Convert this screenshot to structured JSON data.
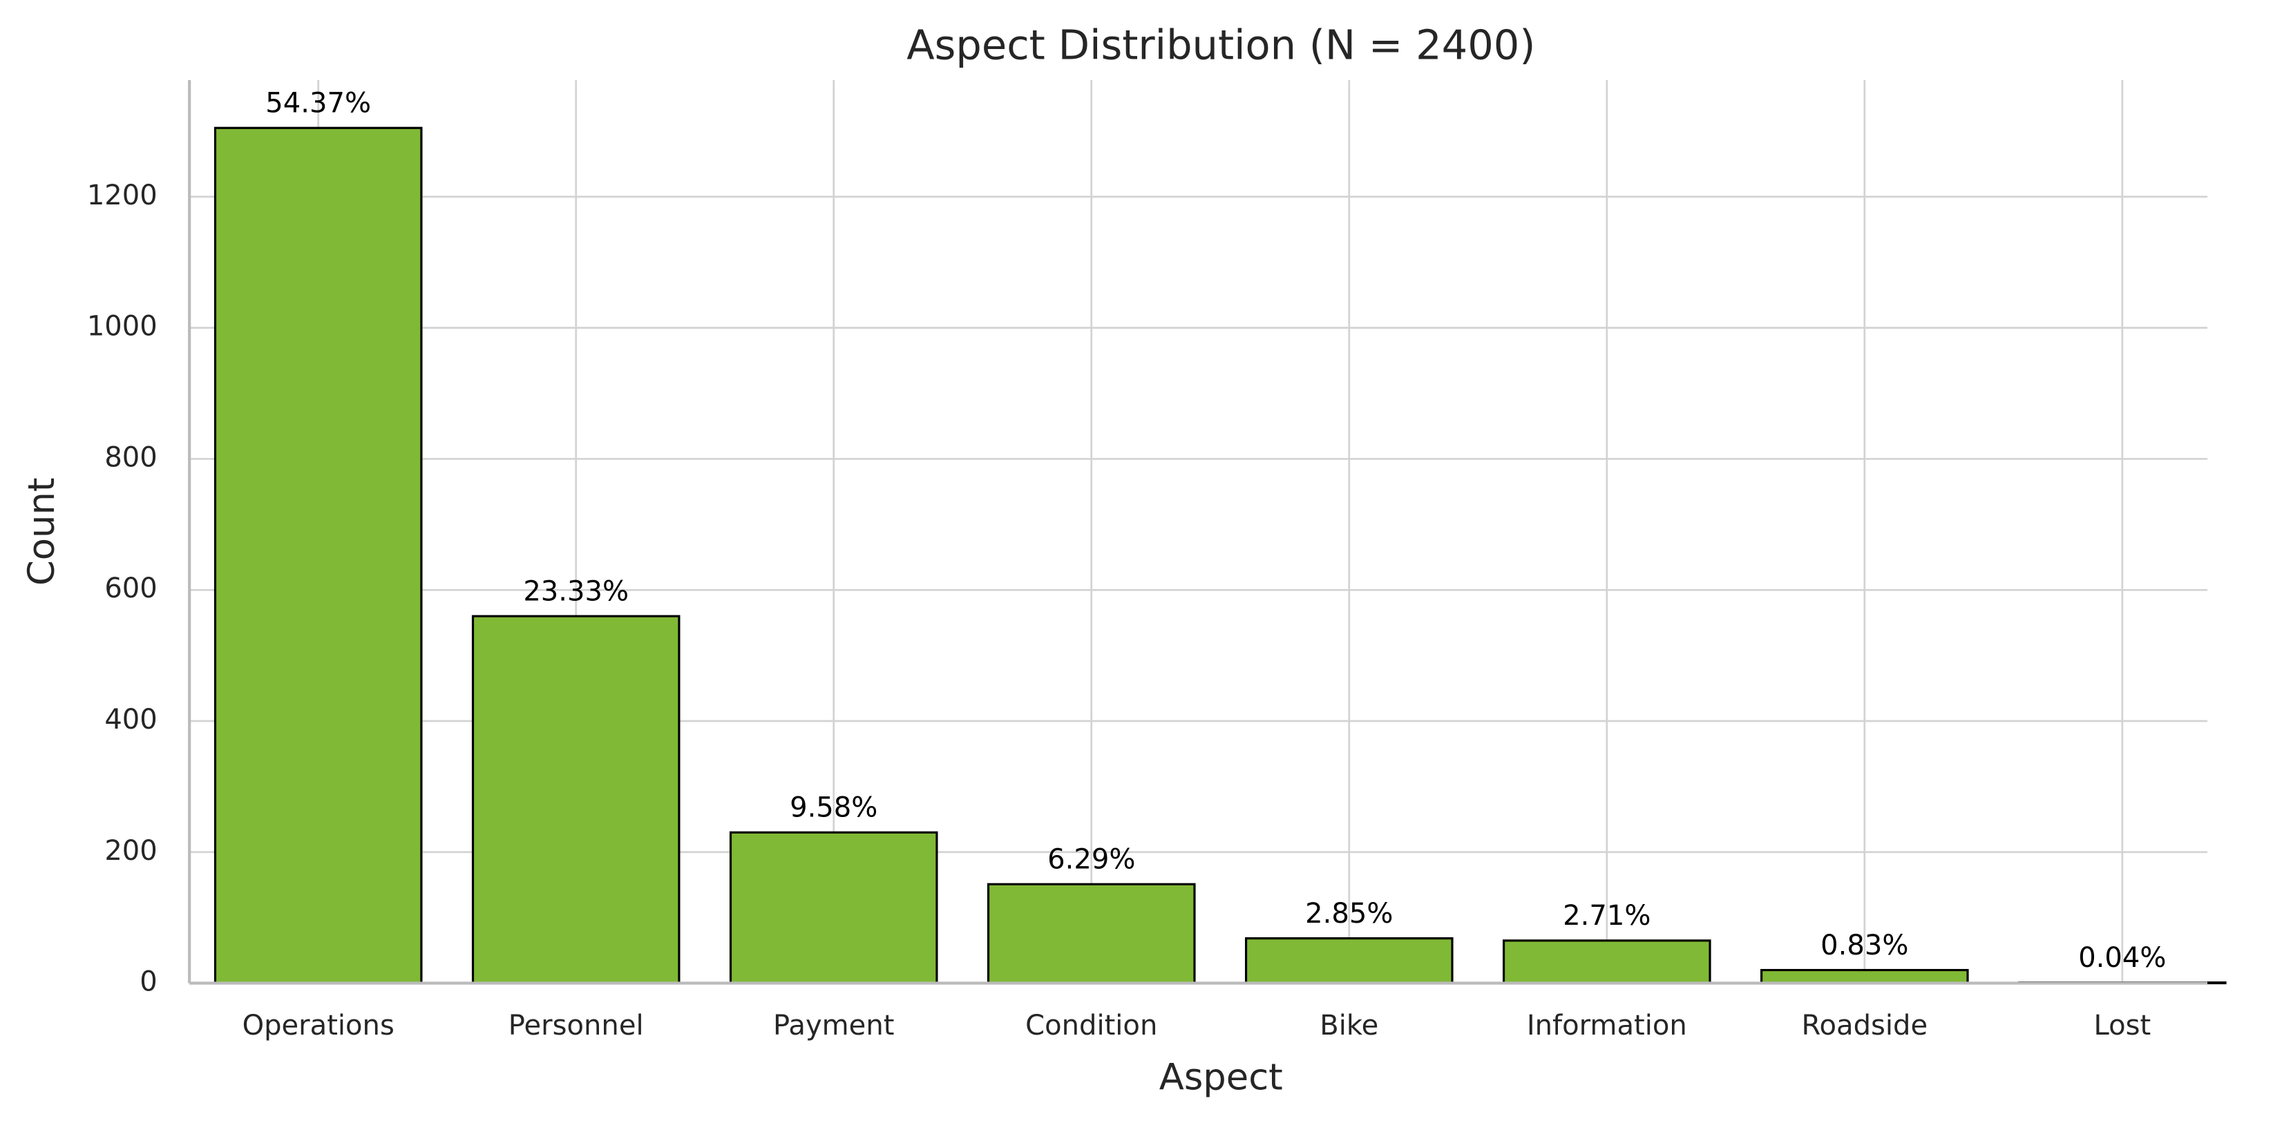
{
  "chart_data": {
    "type": "bar",
    "title": "Aspect Distribution (N = 2400)",
    "x_label": "Aspect",
    "y_label": "Count",
    "categories": [
      "Operations",
      "Personnel",
      "Payment",
      "Condition",
      "Bike",
      "Information",
      "Roadside",
      "Lost"
    ],
    "values": [
      1305,
      560,
      230,
      151,
      68.4,
      65,
      20,
      1
    ],
    "value_labels": [
      "54.37%",
      "23.33%",
      "9.58%",
      "6.29%",
      "2.85%",
      "2.71%",
      "0.83%",
      "0.04%"
    ],
    "color": "#80b935",
    "edgecolor": "#000000",
    "ylim": [
      0,
      1378
    ],
    "yticks": [
      0,
      200,
      400,
      600,
      800,
      1000,
      1200
    ],
    "grid": true
  }
}
